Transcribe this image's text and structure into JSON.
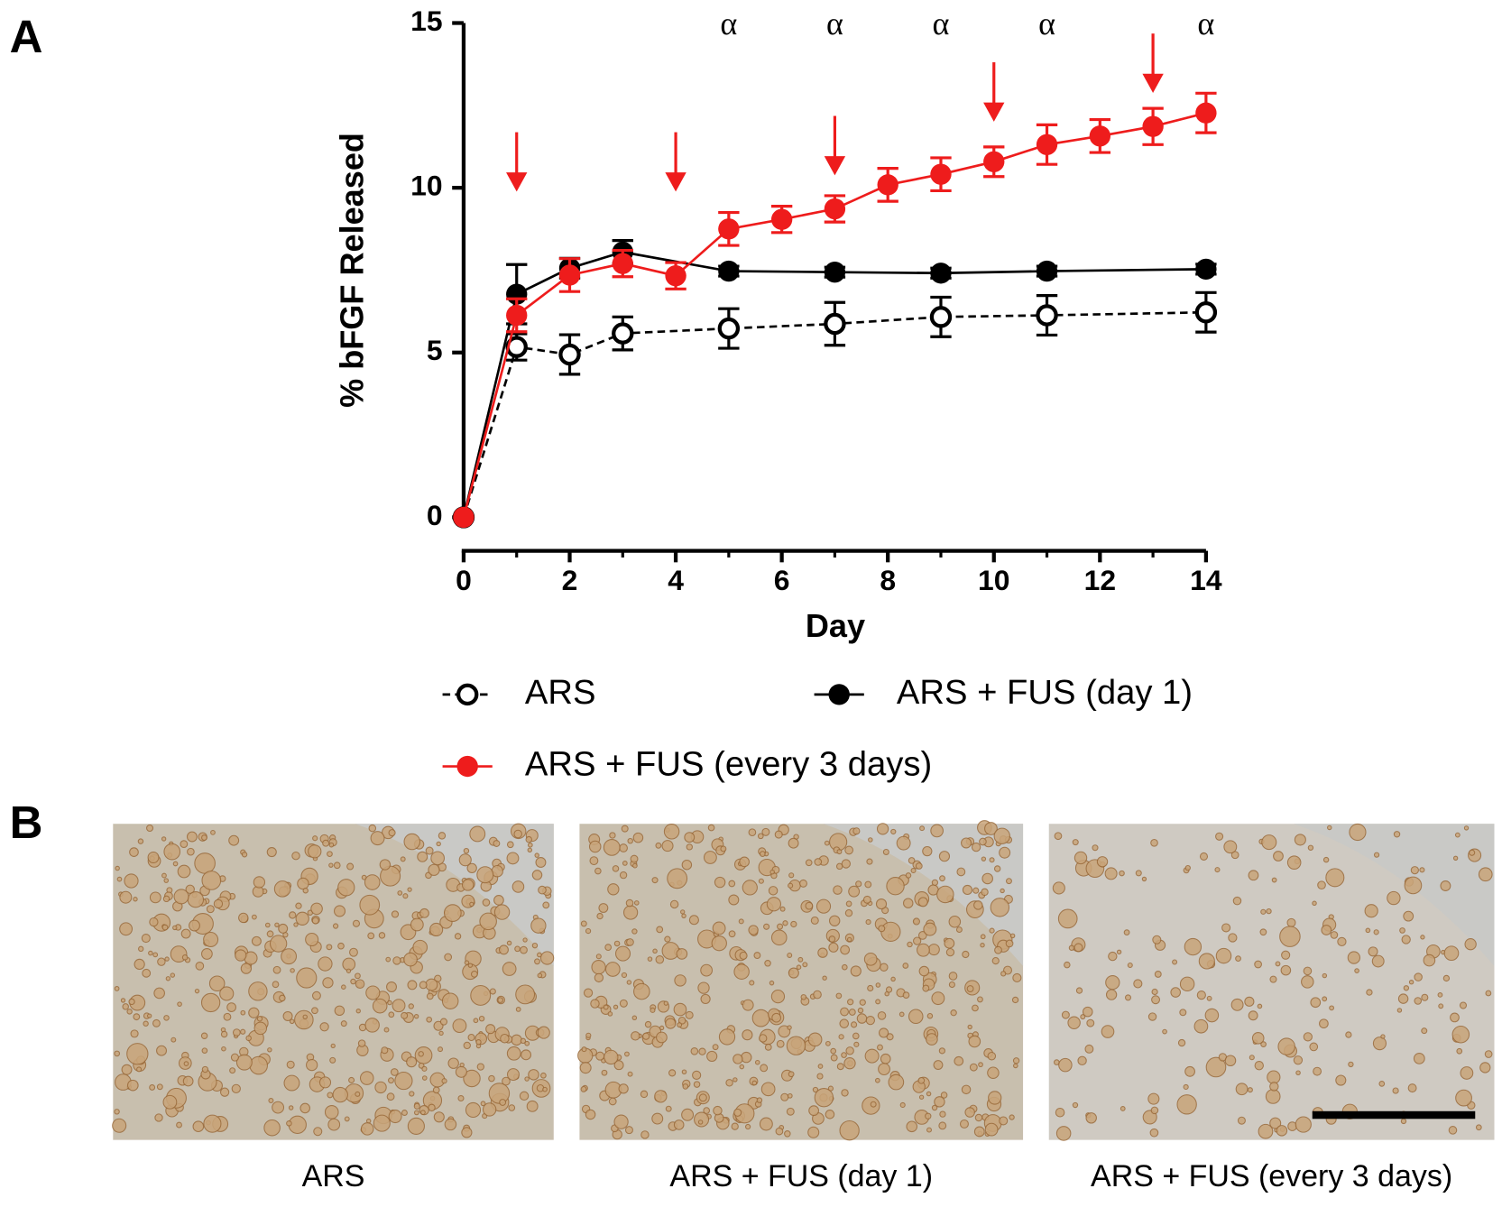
{
  "panels": {
    "a": "A",
    "b": "B"
  },
  "chart_data": {
    "type": "line",
    "xlabel": "Day",
    "ylabel": "% bFGF Released",
    "xlim": [
      0,
      14
    ],
    "xticks": [
      0,
      2,
      4,
      6,
      8,
      10,
      12,
      14
    ],
    "ylim": [
      0,
      15
    ],
    "yticks": [
      0,
      5,
      10,
      15
    ],
    "grid": false,
    "series": [
      {
        "name": "ARS",
        "color": "#000000",
        "marker": "open",
        "dashed": true,
        "x": [
          0,
          1,
          2,
          3,
          5,
          7,
          9,
          11,
          14
        ],
        "values": [
          0,
          5.17,
          4.94,
          5.58,
          5.73,
          5.87,
          6.08,
          6.13,
          6.22
        ],
        "errors": [
          0,
          0.4,
          0.6,
          0.5,
          0.6,
          0.65,
          0.6,
          0.6,
          0.6
        ]
      },
      {
        "name": "ARS + FUS (day 1)",
        "color": "#000000",
        "marker": "filled",
        "dashed": false,
        "x": [
          0,
          1,
          2,
          3,
          5,
          7,
          9,
          11,
          14
        ],
        "values": [
          0,
          6.77,
          7.56,
          8.05,
          7.47,
          7.44,
          7.41,
          7.47,
          7.53
        ],
        "errors": [
          0,
          0.9,
          0.3,
          0.35,
          0.15,
          0.15,
          0.15,
          0.15,
          0.15
        ]
      },
      {
        "name": "ARS + FUS (every 3 days)",
        "color": "#ee1c1c",
        "marker": "filled",
        "dashed": false,
        "x": [
          0,
          1,
          2,
          3,
          4,
          5,
          6,
          7,
          8,
          9,
          10,
          11,
          12,
          13,
          14
        ],
        "values": [
          0,
          6.13,
          7.35,
          7.7,
          7.33,
          8.75,
          9.04,
          9.36,
          10.09,
          10.41,
          10.79,
          11.31,
          11.57,
          11.86,
          12.27
        ],
        "errors": [
          0,
          0.5,
          0.5,
          0.4,
          0.4,
          0.5,
          0.4,
          0.4,
          0.5,
          0.5,
          0.45,
          0.6,
          0.5,
          0.55,
          0.6
        ]
      }
    ],
    "fus_days": [
      1,
      4,
      7,
      10,
      13
    ],
    "arrow_color": "#ee1c1c",
    "annotations": [
      {
        "x": 5,
        "text": "α"
      },
      {
        "x": 7,
        "text": "α"
      },
      {
        "x": 9,
        "text": "α"
      },
      {
        "x": 11,
        "text": "α"
      },
      {
        "x": 14,
        "text": "α"
      }
    ]
  },
  "images": [
    {
      "caption": "ARS"
    },
    {
      "caption": "ARS + FUS (day 1)"
    },
    {
      "caption": "ARS + FUS (every 3 days)"
    }
  ]
}
